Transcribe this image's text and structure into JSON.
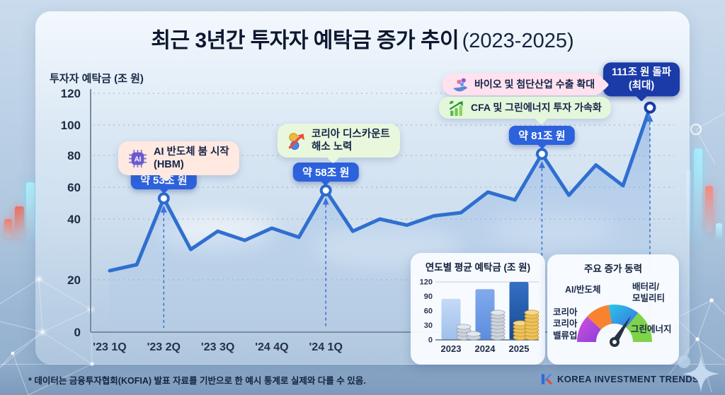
{
  "header": {
    "title_main": "최근 3년간 투자자 예탁금 증가 추이",
    "title_suffix": "(2023-2025)"
  },
  "axis": {
    "y_title": "투자자 예탁금 (조 원)"
  },
  "chart_data": [
    {
      "type": "line",
      "title": "최근 3년간 투자자 예탁금 증가 추이 (2023-2025)",
      "ylabel": "투자자 예탁금 (조 원)",
      "unit": "조 원",
      "x_tick_labels": [
        "'23 1Q",
        "'23 2Q",
        "'23 3Q",
        "'24 4Q",
        "'24 1Q"
      ],
      "y_ticks": [
        0,
        20,
        40,
        60,
        80,
        100,
        120
      ],
      "ylim": [
        0,
        120
      ],
      "grid": true,
      "series": [
        {
          "name": "투자자 예탁금",
          "values": [
            23,
            25,
            53,
            30,
            36,
            33,
            37,
            34,
            58,
            36,
            40,
            38,
            42,
            44,
            57,
            52,
            81,
            55,
            74,
            61,
            111
          ]
        }
      ],
      "marked_points": [
        {
          "index": 2,
          "label": "약 53조 원",
          "value": 53
        },
        {
          "index": 8,
          "label": "약 58조 원",
          "value": 58
        },
        {
          "index": 16,
          "label": "약 81조 원",
          "value": 81
        },
        {
          "index": 20,
          "label": "111조 원 돌파 (최대)",
          "value": 111
        }
      ]
    },
    {
      "type": "bar",
      "title": "연도별 평균 예탁금 (조 원)",
      "categories": [
        "2023",
        "2024",
        "2025"
      ],
      "values": [
        85,
        105,
        120
      ],
      "y_ticks": [
        0,
        30,
        60,
        90,
        120
      ],
      "ylim": [
        0,
        120
      ],
      "bar_colors": [
        "#AECBF0",
        "#6D9BE4",
        "#2B62B8"
      ]
    },
    {
      "type": "gauge",
      "title": "주요 증가 동력",
      "labels": [
        "코리아 코리아 밸류업",
        "AI/반도체",
        "배터리/모빌리티",
        "그린에너지"
      ],
      "colors": [
        "#BA4FE0",
        "#F9822E",
        "#2EA7E8",
        "#7FD349"
      ]
    }
  ],
  "badges": {
    "b53": "약 53조 원",
    "b58": "약 58조 원",
    "b81": "약 81조 원",
    "b111_line1": "111조 원 돌파",
    "b111_line2": "(최대)"
  },
  "callouts": {
    "ai": {
      "line1": "AI 반도체 붐 시작",
      "line2": "(HBM)",
      "icon": "ai-chip-icon",
      "icon_text": "AI"
    },
    "korea": {
      "line1": "코리아 디스카운트",
      "line2": "해소 노력",
      "icon": "coins-rising-arrow-icon"
    },
    "bio": {
      "text": "바이오 및 첨단산업 수출 확대",
      "icon": "hand-pills-icon"
    },
    "cfa": {
      "text": "CFA 및 그린에너지 투자 가속화",
      "icon": "green-growth-chart-icon"
    }
  },
  "gauge": {
    "label_ai": "AI/반도체",
    "label_battery_1": "배터리/",
    "label_battery_2": "모빌리티",
    "label_korea_1": "코리아",
    "label_korea_2": "코리아",
    "label_korea_3": "밸류업",
    "label_green": "그린에너지"
  },
  "footer": {
    "note": "* 데이터는 금융투자협회(KOFIA) 발표 자료를 기반으로 한 예시 통계로 실제와 다를 수 있음.",
    "brand": "KOREA INVESTMENT TRENDS"
  },
  "colors": {
    "line_blue": "#2F6FD0",
    "badge_blue": "#2D62DD",
    "bubble_navy": "#1A3BA8",
    "callout_peach": "#FFE9E0",
    "callout_green": "#E9F8DC",
    "callout_pink": "#FFE2EE",
    "band_blue": "#7C99BB"
  }
}
